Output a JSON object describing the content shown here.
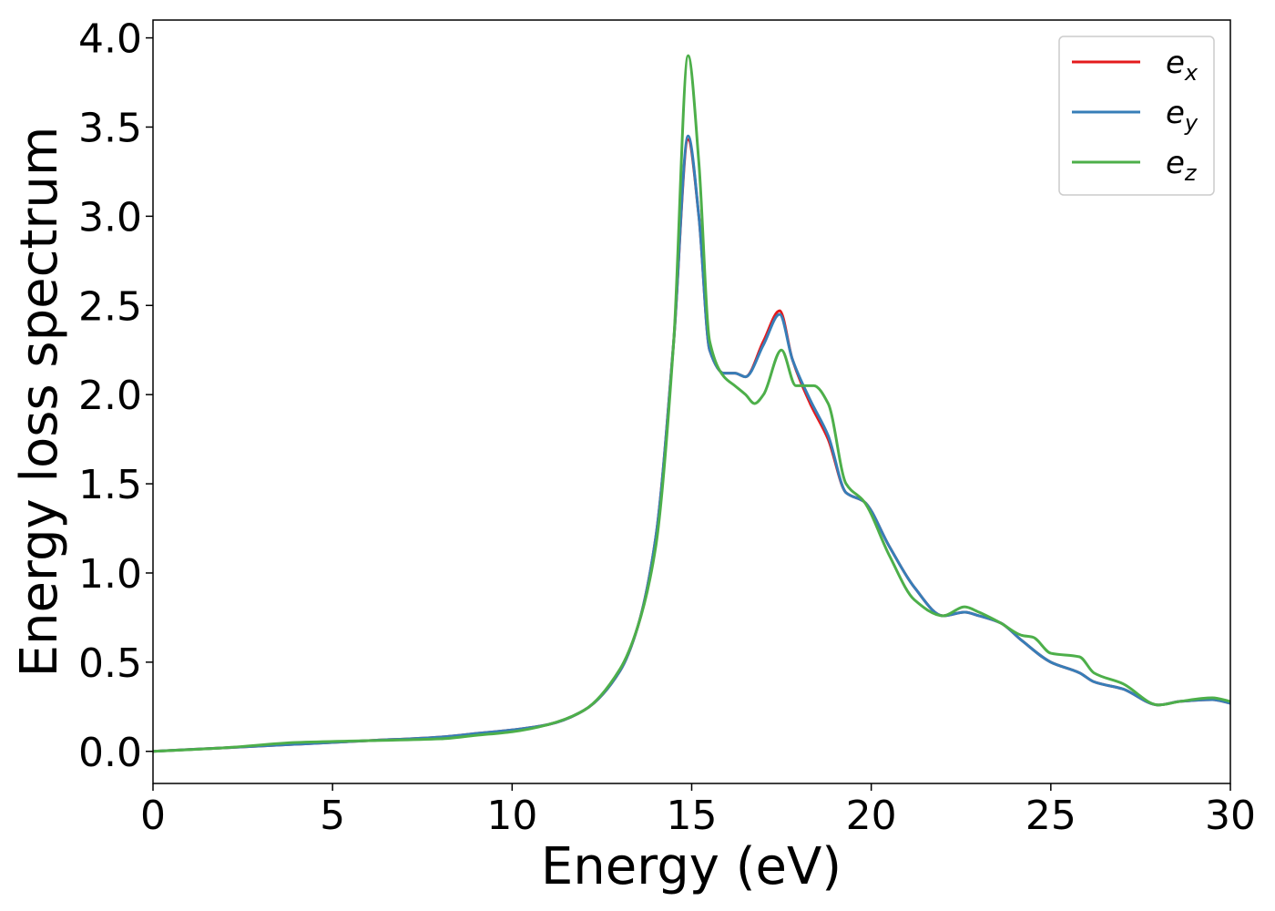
{
  "chart_data": {
    "type": "line",
    "title": "",
    "xlabel": "Energy (eV)",
    "ylabel": "Energy loss spectrum",
    "xlim": [
      0,
      30
    ],
    "ylim": [
      -0.18,
      4.1
    ],
    "xticks": [
      "0",
      "5",
      "10",
      "15",
      "20",
      "25",
      "30"
    ],
    "yticks": [
      "0.0",
      "0.5",
      "1.0",
      "1.5",
      "2.0",
      "2.5",
      "3.0",
      "3.5",
      "4.0"
    ],
    "grid": false,
    "legend_position": "top-right",
    "series": [
      {
        "name": "e_x",
        "legend_base": "e",
        "legend_sub": "x",
        "color": "#e41a1c",
        "x": [
          0,
          2,
          4,
          6,
          8,
          9,
          10,
          11,
          12,
          13,
          13.5,
          14,
          14.5,
          14.9,
          15.2,
          15.5,
          15.9,
          16.2,
          16.5,
          17.0,
          17.45,
          17.8,
          18.3,
          18.8,
          19.3,
          19.8,
          20.5,
          21.2,
          22.0,
          22.6,
          23.0,
          23.6,
          24.2,
          25.0,
          25.8,
          26.2,
          27.0,
          28.0,
          28.6,
          29.5,
          30.0
        ],
        "y": [
          0.0,
          0.02,
          0.04,
          0.06,
          0.08,
          0.1,
          0.12,
          0.15,
          0.23,
          0.45,
          0.7,
          1.2,
          2.3,
          3.43,
          3.0,
          2.25,
          2.12,
          2.12,
          2.1,
          2.3,
          2.47,
          2.2,
          1.95,
          1.75,
          1.45,
          1.4,
          1.15,
          0.92,
          0.76,
          0.78,
          0.76,
          0.72,
          0.62,
          0.5,
          0.44,
          0.39,
          0.35,
          0.26,
          0.28,
          0.29,
          0.27
        ]
      },
      {
        "name": "e_y",
        "legend_base": "e",
        "legend_sub": "y",
        "color": "#377eb8",
        "x": [
          0,
          2,
          4,
          6,
          8,
          9,
          10,
          11,
          12,
          13,
          13.5,
          14,
          14.5,
          14.9,
          15.2,
          15.5,
          15.9,
          16.2,
          16.5,
          17.0,
          17.45,
          17.8,
          18.3,
          18.8,
          19.3,
          19.8,
          20.5,
          21.2,
          22.0,
          22.6,
          23.0,
          23.6,
          24.2,
          25.0,
          25.8,
          26.2,
          27.0,
          28.0,
          28.6,
          29.5,
          30.0
        ],
        "y": [
          0.0,
          0.02,
          0.04,
          0.06,
          0.08,
          0.1,
          0.12,
          0.15,
          0.23,
          0.45,
          0.7,
          1.2,
          2.3,
          3.45,
          3.0,
          2.25,
          2.12,
          2.12,
          2.1,
          2.28,
          2.45,
          2.2,
          1.97,
          1.77,
          1.45,
          1.4,
          1.15,
          0.92,
          0.76,
          0.78,
          0.76,
          0.72,
          0.62,
          0.5,
          0.44,
          0.39,
          0.35,
          0.26,
          0.28,
          0.29,
          0.27
        ]
      },
      {
        "name": "e_z",
        "legend_base": "e",
        "legend_sub": "z",
        "color": "#4daf4a",
        "x": [
          0,
          2,
          4,
          6,
          8,
          9,
          10,
          11,
          12,
          13,
          13.5,
          14,
          14.5,
          14.9,
          15.2,
          15.5,
          15.9,
          16.2,
          16.5,
          16.75,
          17.0,
          17.5,
          17.9,
          18.4,
          18.8,
          19.3,
          19.8,
          20.5,
          21.2,
          22.0,
          22.6,
          23.0,
          23.6,
          24.2,
          24.5,
          25.0,
          25.8,
          26.2,
          27.0,
          28.0,
          28.6,
          29.5,
          30.0
        ],
        "y": [
          0.0,
          0.02,
          0.05,
          0.06,
          0.07,
          0.09,
          0.11,
          0.15,
          0.23,
          0.46,
          0.7,
          1.15,
          2.3,
          3.9,
          3.3,
          2.3,
          2.1,
          2.05,
          2.0,
          1.95,
          2.0,
          2.25,
          2.05,
          2.05,
          1.95,
          1.5,
          1.4,
          1.1,
          0.85,
          0.76,
          0.81,
          0.78,
          0.72,
          0.65,
          0.64,
          0.55,
          0.53,
          0.44,
          0.38,
          0.26,
          0.28,
          0.3,
          0.28
        ]
      }
    ]
  }
}
